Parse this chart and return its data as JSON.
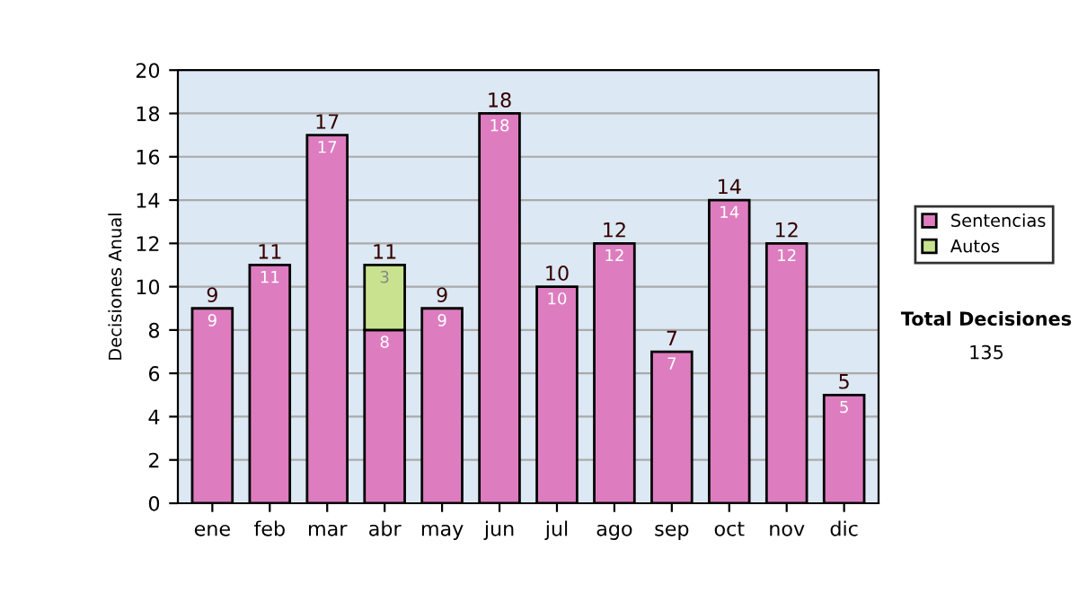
{
  "chart_data": {
    "type": "bar",
    "stacked": true,
    "ylabel": "Decisiones Anual",
    "categories": [
      "ene",
      "feb",
      "mar",
      "abr",
      "may",
      "jun",
      "jul",
      "ago",
      "sep",
      "oct",
      "nov",
      "dic"
    ],
    "series": [
      {
        "name": "Sentencias",
        "color": "#dd7dbf",
        "values": [
          9,
          11,
          17,
          8,
          9,
          18,
          10,
          12,
          7,
          14,
          12,
          5
        ]
      },
      {
        "name": "Autos",
        "color": "#c9e28f",
        "values": [
          null,
          null,
          null,
          3,
          null,
          null,
          null,
          null,
          null,
          null,
          null,
          null
        ]
      }
    ],
    "totals": [
      "9",
      "11",
      "17",
      "11",
      "9",
      "18",
      "10",
      "12",
      "7",
      "14",
      "12",
      "5"
    ],
    "data_labels": true,
    "ylim": [
      0,
      20
    ],
    "yticks": [
      0,
      2,
      4,
      6,
      8,
      10,
      12,
      14,
      16,
      18,
      20
    ],
    "grid": "y",
    "legend": "right",
    "annotations": [
      "Total Decisiones",
      "135"
    ]
  }
}
